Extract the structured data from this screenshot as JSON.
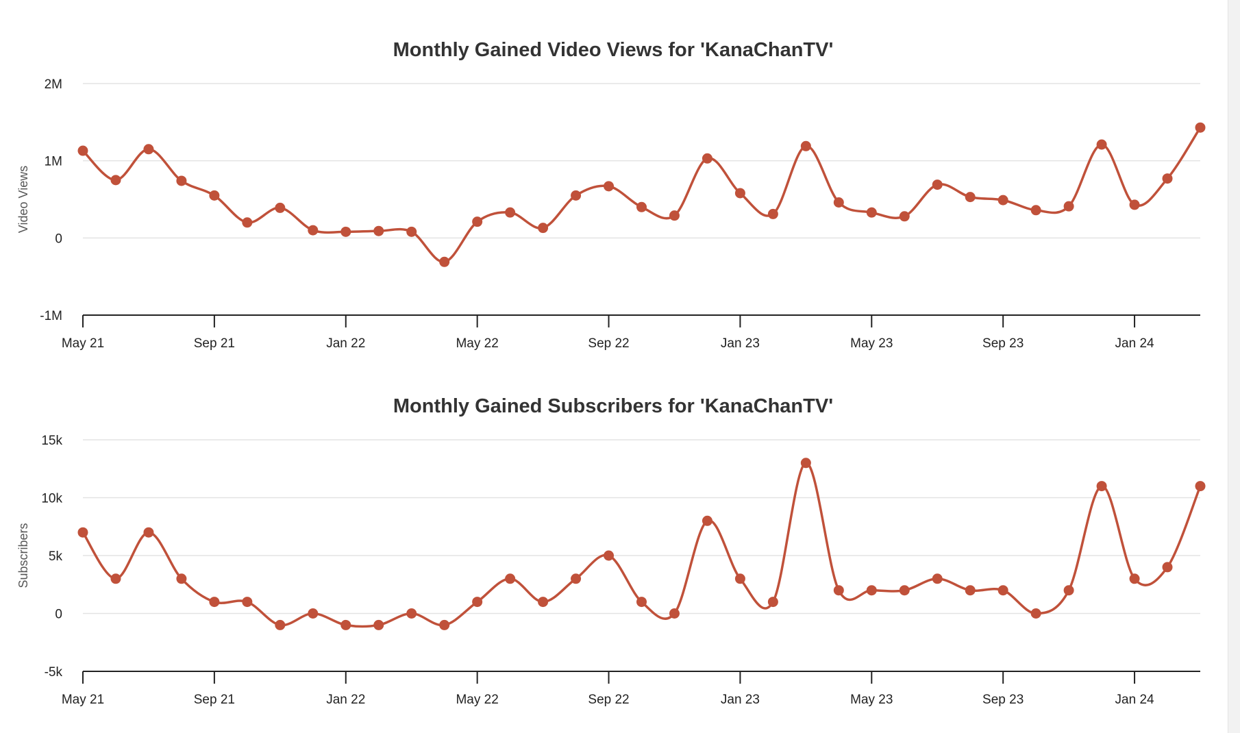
{
  "chart_data": [
    {
      "type": "line",
      "title": "Monthly Gained Video Views for 'KanaChanTV'",
      "ylabel": "Video Views",
      "ylim": [
        -1000000,
        2000000
      ],
      "yticks": [
        {
          "value": -1000000,
          "label": "-1M"
        },
        {
          "value": 0,
          "label": "0"
        },
        {
          "value": 1000000,
          "label": "1M"
        },
        {
          "value": 2000000,
          "label": "2M"
        }
      ],
      "xticks": [
        "May 21",
        "Sep 21",
        "Jan 22",
        "May 22",
        "Sep 22",
        "Jan 23",
        "May 23",
        "Sep 23",
        "Jan 24"
      ],
      "grid": true,
      "color": "#c0513a",
      "x": [
        "2021-05",
        "2021-06",
        "2021-07",
        "2021-08",
        "2021-09",
        "2021-10",
        "2021-11",
        "2021-12",
        "2022-01",
        "2022-02",
        "2022-03",
        "2022-04",
        "2022-05",
        "2022-06",
        "2022-07",
        "2022-08",
        "2022-09",
        "2022-10",
        "2022-11",
        "2022-12",
        "2023-01",
        "2023-02",
        "2023-03",
        "2023-04",
        "2023-05",
        "2023-06",
        "2023-07",
        "2023-08",
        "2023-09",
        "2023-10",
        "2023-11",
        "2023-12",
        "2024-01",
        "2024-02",
        "2024-03"
      ],
      "values": [
        1130000,
        750000,
        1150000,
        740000,
        550000,
        200000,
        390000,
        100000,
        80000,
        90000,
        80000,
        -310000,
        210000,
        330000,
        130000,
        550000,
        670000,
        400000,
        290000,
        1030000,
        580000,
        310000,
        1190000,
        460000,
        330000,
        280000,
        690000,
        530000,
        490000,
        360000,
        410000,
        1210000,
        430000,
        770000,
        1430000
      ]
    },
    {
      "type": "line",
      "title": "Monthly Gained Subscribers for 'KanaChanTV'",
      "ylabel": "Subscribers",
      "ylim": [
        -5000,
        15000
      ],
      "yticks": [
        {
          "value": -5000,
          "label": "-5k"
        },
        {
          "value": 0,
          "label": "0"
        },
        {
          "value": 5000,
          "label": "5k"
        },
        {
          "value": 10000,
          "label": "10k"
        },
        {
          "value": 15000,
          "label": "15k"
        }
      ],
      "xticks": [
        "May 21",
        "Sep 21",
        "Jan 22",
        "May 22",
        "Sep 22",
        "Jan 23",
        "May 23",
        "Sep 23",
        "Jan 24"
      ],
      "grid": true,
      "color": "#c0513a",
      "x": [
        "2021-05",
        "2021-06",
        "2021-07",
        "2021-08",
        "2021-09",
        "2021-10",
        "2021-11",
        "2021-12",
        "2022-01",
        "2022-02",
        "2022-03",
        "2022-04",
        "2022-05",
        "2022-06",
        "2022-07",
        "2022-08",
        "2022-09",
        "2022-10",
        "2022-11",
        "2022-12",
        "2023-01",
        "2023-02",
        "2023-03",
        "2023-04",
        "2023-05",
        "2023-06",
        "2023-07",
        "2023-08",
        "2023-09",
        "2023-10",
        "2023-11",
        "2023-12",
        "2024-01",
        "2024-02",
        "2024-03"
      ],
      "values": [
        7000,
        3000,
        7000,
        3000,
        1000,
        1000,
        -1000,
        0,
        -1000,
        -1000,
        0,
        -1000,
        1000,
        3000,
        1000,
        3000,
        5000,
        1000,
        0,
        8000,
        3000,
        1000,
        13000,
        2000,
        2000,
        2000,
        3000,
        2000,
        2000,
        0,
        2000,
        11000,
        3000,
        4000,
        11000
      ]
    }
  ]
}
